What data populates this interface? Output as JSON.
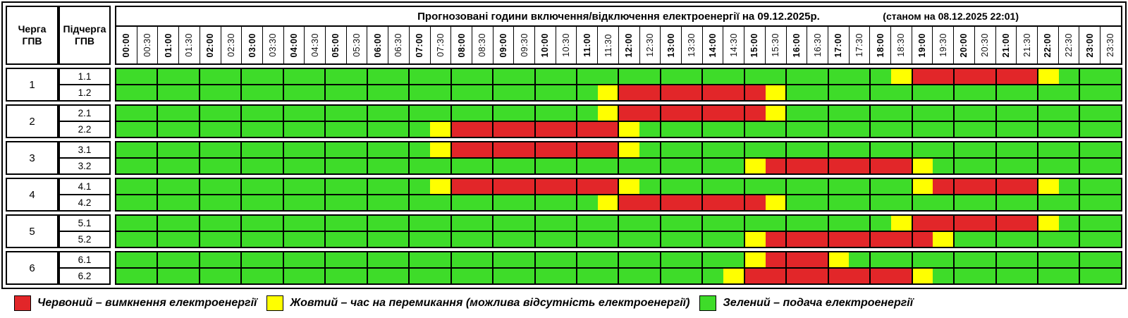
{
  "left_header": {
    "queue": "Черга ГПВ",
    "subqueue": "Підчерга ГПВ"
  },
  "chart_data": {
    "type": "heatmap",
    "title": "Прогнозовані години включення/відключення електроенергії на 09.12.2025р.",
    "subtitle": "(станом на 08.12.2025 22:01)",
    "x_labels": [
      "00:00",
      "00:30",
      "01:00",
      "01:30",
      "02:00",
      "02:30",
      "03:00",
      "03:30",
      "04:00",
      "04:30",
      "05:00",
      "05:30",
      "06:00",
      "06:30",
      "07:00",
      "07:30",
      "08:00",
      "08:30",
      "09:00",
      "09:30",
      "10:00",
      "10:30",
      "11:00",
      "11:30",
      "12:00",
      "12:30",
      "13:00",
      "13:30",
      "14:00",
      "14:30",
      "15:00",
      "15:30",
      "16:00",
      "16:30",
      "17:00",
      "17:30",
      "18:00",
      "18:30",
      "19:00",
      "19:30",
      "20:00",
      "20:30",
      "21:00",
      "21:30",
      "22:00",
      "22:30",
      "23:00",
      "23:30"
    ],
    "colors": {
      "G": "#3edc29",
      "Y": "#ffff00",
      "R": "#e22629"
    },
    "state_meanings": {
      "R": "вимкнення електроенергії",
      "Y": "час на перемикання (можлива відсутність електроенергії)",
      "G": "подача електроенергії"
    },
    "rows": [
      {
        "queue": "1",
        "subqueue": "1.1",
        "pattern": "GGGGGGGGGGGGGGGGGGGGGGGGGGGGGGGGGGGGGYRRRRRRYGGG"
      },
      {
        "queue": "1",
        "subqueue": "1.2",
        "pattern": "GGGGGGGGGGGGGGGGGGGGGGGYRRRRRRRYGGGGGGGGGGGGGGGG"
      },
      {
        "queue": "2",
        "subqueue": "2.1",
        "pattern": "GGGGGGGGGGGGGGGGGGGGGGGYRRRRRRRYGGGGGGGGGGGGGGGG"
      },
      {
        "queue": "2",
        "subqueue": "2.2",
        "pattern": "GGGGGGGGGGGGGGGYRRRRRRRRYGGGGGGGGGGGGGGGGGGGGGGG"
      },
      {
        "queue": "3",
        "subqueue": "3.1",
        "pattern": "GGGGGGGGGGGGGGGYRRRRRRRRYGGGGGGGGGGGGGGGGGGGGGGG"
      },
      {
        "queue": "3",
        "subqueue": "3.2",
        "pattern": "GGGGGGGGGGGGGGGGGGGGGGGGGGGGGGYRRRRRRRYGGGGGGGGG"
      },
      {
        "queue": "4",
        "subqueue": "4.1",
        "pattern": "GGGGGGGGGGGGGGGYRRRRRRRRYGGGGGGGGGGGGGYRRRRRYGGG"
      },
      {
        "queue": "4",
        "subqueue": "4.2",
        "pattern": "GGGGGGGGGGGGGGGGGGGGGGGYRRRRRRRYGGGGGGGGGGGGGGGG"
      },
      {
        "queue": "5",
        "subqueue": "5.1",
        "pattern": "GGGGGGGGGGGGGGGGGGGGGGGGGGGGGGGGGGGGGYRRRRRRYGGG"
      },
      {
        "queue": "5",
        "subqueue": "5.2",
        "pattern": "GGGGGGGGGGGGGGGGGGGGGGGGGGGGGGYRRRRRRRRYGGGGGGGG"
      },
      {
        "queue": "6",
        "subqueue": "6.1",
        "pattern": "GGGGGGGGGGGGGGGGGGGGGGGGGGGGGGYRRRYGGGGGGGGGGGGG"
      },
      {
        "queue": "6",
        "subqueue": "6.2",
        "pattern": "GGGGGGGGGGGGGGGGGGGGGGGGGGGGGYRRRRRRRRYGGGGGGGGG"
      }
    ],
    "legend": [
      {
        "state": "R",
        "color": "#e22629",
        "label": "Червоний – вимкнення електроенергії"
      },
      {
        "state": "Y",
        "color": "#ffff00",
        "label": "Жовтий – час на перемикання (можлива відсутність електроенергії)"
      },
      {
        "state": "G",
        "color": "#3edc29",
        "label": "Зелений – подача електроенергії"
      }
    ]
  }
}
